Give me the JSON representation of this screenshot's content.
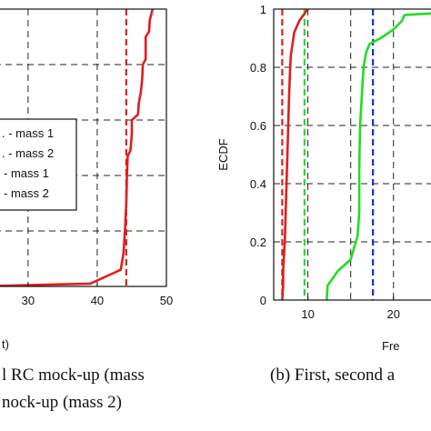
{
  "chart_data": [
    {
      "type": "line",
      "xlabel": "t)",
      "ylabel": "",
      "xlim": [
        22,
        50
      ],
      "ylim": [
        0,
        1
      ],
      "x_ticks": [
        "30",
        "40",
        "50"
      ],
      "y_ticks": [],
      "grid": true,
      "legend": {
        "placement": "left",
        "entries": [
          ". - mass 1",
          ". - mass 2",
          "- mass 1",
          "- mass 2"
        ]
      },
      "series": [
        {
          "color": "#e11d1d",
          "points": [
            [
              22,
              0
            ],
            [
              39.0,
              0.01
            ],
            [
              43.4,
              0.06
            ],
            [
              43.8,
              0.12
            ],
            [
              44.0,
              0.2
            ],
            [
              44.2,
              0.3
            ],
            [
              44.3,
              0.4
            ],
            [
              44.4,
              0.47
            ],
            [
              44.8,
              0.49
            ],
            [
              45.0,
              0.55
            ],
            [
              45.0,
              0.6
            ],
            [
              45.9,
              0.62
            ],
            [
              46.0,
              0.66
            ],
            [
              46.3,
              0.7
            ],
            [
              46.5,
              0.75
            ],
            [
              46.6,
              0.8
            ],
            [
              47.0,
              0.82
            ],
            [
              47.0,
              0.9
            ],
            [
              47.5,
              0.92
            ],
            [
              47.6,
              0.96
            ],
            [
              48.0,
              1.0
            ]
          ]
        }
      ],
      "vlines": [
        {
          "x": 44.2,
          "color": "#e11d1d",
          "style": "dashed"
        }
      ],
      "caption_lines": [
        "l RC mock-up (mass",
        "nock-up (mass 2)"
      ]
    },
    {
      "type": "line",
      "xlabel": "Fre",
      "ylabel": "ECDF",
      "xlim": [
        6,
        28
      ],
      "ylim": [
        0,
        1
      ],
      "x_ticks": [
        "10",
        "20"
      ],
      "y_ticks": [
        "0",
        "0.2",
        "0.4",
        "0.6",
        "0.8",
        "1"
      ],
      "grid": true,
      "series": [
        {
          "color": "#e11d1d",
          "points": [
            [
              7.0,
              0
            ],
            [
              7.1,
              0.05
            ],
            [
              7.1,
              0.1
            ],
            [
              7.3,
              0.2
            ],
            [
              7.4,
              0.3
            ],
            [
              7.5,
              0.4
            ],
            [
              7.6,
              0.5
            ],
            [
              7.7,
              0.6
            ],
            [
              7.8,
              0.7
            ],
            [
              7.9,
              0.78
            ],
            [
              8.0,
              0.84
            ],
            [
              8.2,
              0.88
            ],
            [
              8.4,
              0.92
            ],
            [
              9.0,
              0.96
            ],
            [
              10.0,
              1.0
            ]
          ]
        },
        {
          "color": "#22dd22",
          "points": [
            [
              12.2,
              0
            ],
            [
              12.3,
              0.05
            ],
            [
              13.5,
              0.1
            ],
            [
              15.0,
              0.14
            ],
            [
              15.8,
              0.22
            ],
            [
              16.0,
              0.3
            ],
            [
              16.0,
              0.45
            ],
            [
              16.1,
              0.6
            ],
            [
              16.3,
              0.7
            ],
            [
              16.5,
              0.8
            ],
            [
              16.8,
              0.85
            ],
            [
              17.2,
              0.88
            ],
            [
              18.5,
              0.9
            ],
            [
              20.0,
              0.93
            ],
            [
              21.0,
              0.96
            ],
            [
              21.3,
              0.98
            ],
            [
              27.5,
              0.99
            ]
          ]
        }
      ],
      "vlines": [
        {
          "x": 7.0,
          "color": "#e11d1d",
          "style": "dashed"
        },
        {
          "x": 9.6,
          "color": "#22dd22",
          "style": "dashed"
        },
        {
          "x": 17.6,
          "color": "#1630c8",
          "style": "dashed"
        }
      ],
      "caption_lines": [
        "(b) First, second a"
      ]
    }
  ]
}
